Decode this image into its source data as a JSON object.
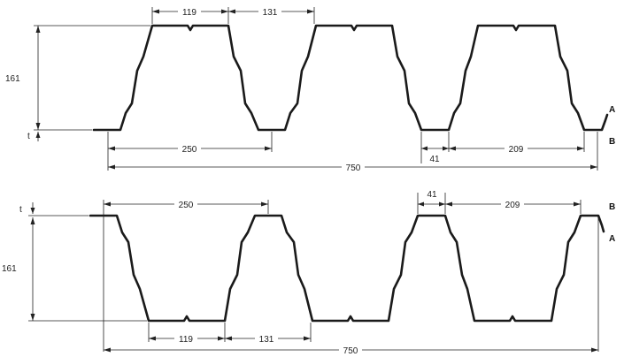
{
  "top_profile": {
    "dimensions": {
      "crest_half_left": "119",
      "crest_half_right": "131",
      "height": "161",
      "thickness": "t",
      "pitch": "250",
      "valley_width": "41",
      "crest_width": "209",
      "cover_width": "750"
    },
    "side_labels": {
      "upper": "A",
      "lower": "B"
    }
  },
  "bottom_profile": {
    "dimensions": {
      "pitch": "250",
      "rib_width": "41",
      "crest_width": "209",
      "height": "161",
      "thickness": "t",
      "pan_half_left": "119",
      "pan_half_right": "131",
      "cover_width": "750"
    },
    "side_labels": {
      "upper": "B",
      "lower": "A"
    }
  }
}
